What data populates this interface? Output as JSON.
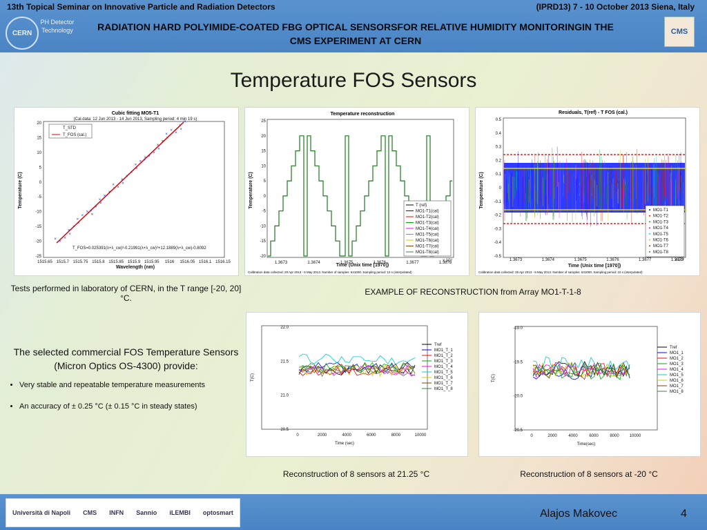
{
  "header": {
    "conference": "13th Topical Seminar on Innovative Particle and Radiation Detectors",
    "conference_info": "(IPRD13) 7 - 10 October 2013   Siena, Italy",
    "title": "RADIATION HARD POLYIMIDE-COATED FBG OPTICAL SENSORSFOR RELATIVE HUMIDITY MONITORINGIN THE CMS EXPERIMENT AT CERN",
    "ph_dept": "PH Detector Technology",
    "cern_logo": "CERN",
    "cms_logo": "CMS"
  },
  "slide_title": "Temperature FOS Sensors",
  "plots": {
    "cubic": {
      "title": "Cubic fitting MO5-T1",
      "subtitle": "(Cal.data: 12 Jun 2013 - 14 Jun 2013, Sampling period: 4 min 19 s)",
      "xlabel": "Wavelength (nm)",
      "ylabel": "Temperature (C)",
      "legend": [
        "T_STD",
        "T_FOS (cal.)"
      ],
      "formula": "T_FOS=0.025391(λ+λ_cw)³-0.21991(λ+λ_cw)²+12.1889(λ+λ_cw)-0.8092",
      "xticks": [
        "1515.65",
        "1515.7",
        "1515.75",
        "1515.8",
        "1515.85",
        "1515.9",
        "1515.95",
        "1516",
        "1516.05",
        "1516.1",
        "1516.15"
      ],
      "yticks": [
        "20",
        "15",
        "10",
        "5",
        "0",
        "-5",
        "-10",
        "-15",
        "-20",
        "-25"
      ]
    },
    "recon": {
      "title": "Temperature reconstruction",
      "xlabel": "Time (Unix time [1970])",
      "ylabel": "Temperature (C)",
      "xticks": [
        "1.3673",
        "1.3674",
        "1.3675",
        "1.3676",
        "1.3677",
        "1.3678"
      ],
      "yticks": [
        "25",
        "20",
        "15",
        "10",
        "5",
        "0",
        "-5",
        "-10",
        "-15",
        "-20"
      ],
      "exponent": "x 10⁹",
      "legend": [
        "T (ref)",
        "MO1-T1(cal)",
        "MO1-T2(cal)",
        "MO1-T3(cal)",
        "MO1-T4(cal)",
        "MO1-T5(cal)",
        "MO1-T6(cal)",
        "MO1-T7(cal)",
        "MO1-T8(cal)"
      ],
      "footnote": "Calibration data collected: 29 Apr 2013 - 6 May 2013. Number of samples: 641000. Sampling period: 10 s (interpolated)"
    },
    "resid": {
      "title": "Residuals, T(ref) - T FOS (cal.)",
      "xlabel": "Time (Unix time [1970])",
      "ylabel": "Temperature (C)",
      "xticks": [
        "1.3673",
        "1.3674",
        "1.3675",
        "1.3676",
        "1.3677",
        "1.3678"
      ],
      "yticks": [
        "0.5",
        "0.4",
        "0.3",
        "0.2",
        "0.1",
        "0",
        "-0.1",
        "-0.2",
        "-0.3",
        "-0.4",
        "-0.5"
      ],
      "exponent": "x 10⁹",
      "legend": [
        "MO1-T1",
        "MO1-T2",
        "MO1-T3",
        "MO1-T4",
        "MO1-T5",
        "MO1-T6",
        "MO1-T7",
        "MO1-T8"
      ],
      "footnote": "Calibration data collected: 29 Apr 2013 - 6 May 2013. Number of samples: 641000. Sampling period: 10 s (interpolated)"
    },
    "steady1": {
      "xlabel": "Time (sec)",
      "ylabel": "T(C)",
      "xticks": [
        "0",
        "2000",
        "4000",
        "6000",
        "8000",
        "10000"
      ],
      "yticks": [
        "22.0",
        "21.5",
        "21.0",
        "20.5"
      ],
      "legend": [
        "Tref",
        "MO1_T_1",
        "MO1_T_2",
        "MO1_T_3",
        "MO1_T_4",
        "MO1_T_5",
        "MO1_T_6",
        "MO1_T_7",
        "MO1_T_8"
      ]
    },
    "steady2": {
      "xlabel": "Time(sec)",
      "ylabel": "T(C)",
      "xticks": [
        "0",
        "2000",
        "4000",
        "6000",
        "8000",
        "10000"
      ],
      "yticks": [
        "-19.0",
        "-19.5",
        "-20.0",
        "-20.5"
      ],
      "legend": [
        "Tref",
        "MO1_1",
        "MO1_2",
        "MO1_3",
        "MO1_4",
        "MO1_5",
        "MO1_6",
        "MO1_7",
        "MO1_8"
      ]
    }
  },
  "series_colors": [
    "#000000",
    "#0000ff",
    "#ff0000",
    "#00aa00",
    "#ff00ff",
    "#00cccc",
    "#cccc00",
    "#7f3f00",
    "#3f7f3f"
  ],
  "captions": {
    "lab_tests": "Tests performed in laboratory of CERN, in the T range [-20, 20] °C.",
    "example": "EXAMPLE OF RECONSTRUCTION from Array MO1-T-1-8",
    "recon_2125": "Reconstruction of 8 sensors at 21.25 °C",
    "recon_m20": "Reconstruction of 8 sensors at -20 °C"
  },
  "bullets": {
    "lead": "The selected commercial FOS Temperature Sensors (Micron Optics OS-4300) provide:",
    "items": [
      "Very stable and repeatable  temperature measurements",
      "An accuracy of  ± 0.25 °C (± 0.15 °C in steady states)"
    ]
  },
  "footer": {
    "logos": [
      "Università di Napoli",
      "CMS",
      "INFN",
      "Sannio",
      "iLEMBI",
      "optosmart"
    ],
    "author": "Alajos Makovec",
    "page": "4"
  }
}
